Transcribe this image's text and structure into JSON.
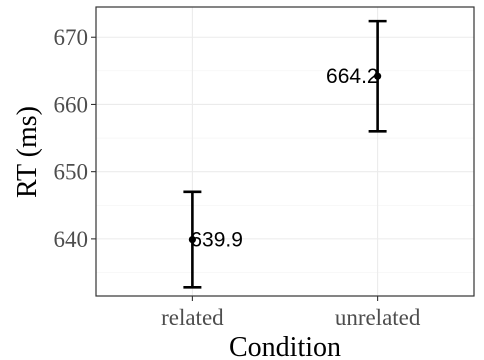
{
  "chart_data": {
    "type": "scatter",
    "xlabel": "Condition",
    "ylabel": "RT (ms)",
    "categories": [
      "related",
      "unrelated"
    ],
    "points": [
      {
        "category": "related",
        "mean": 639.9,
        "lower": 632.8,
        "upper": 647.0,
        "label": "639.9"
      },
      {
        "category": "unrelated",
        "mean": 664.2,
        "lower": 656.0,
        "upper": 672.4,
        "label": "664.2"
      }
    ],
    "ylim": [
      631.5,
      674.5
    ],
    "yticks": [
      640,
      650,
      660,
      670
    ],
    "ytick_labels": [
      "640",
      "650",
      "660",
      "670"
    ],
    "grid": true,
    "legend": "none"
  }
}
